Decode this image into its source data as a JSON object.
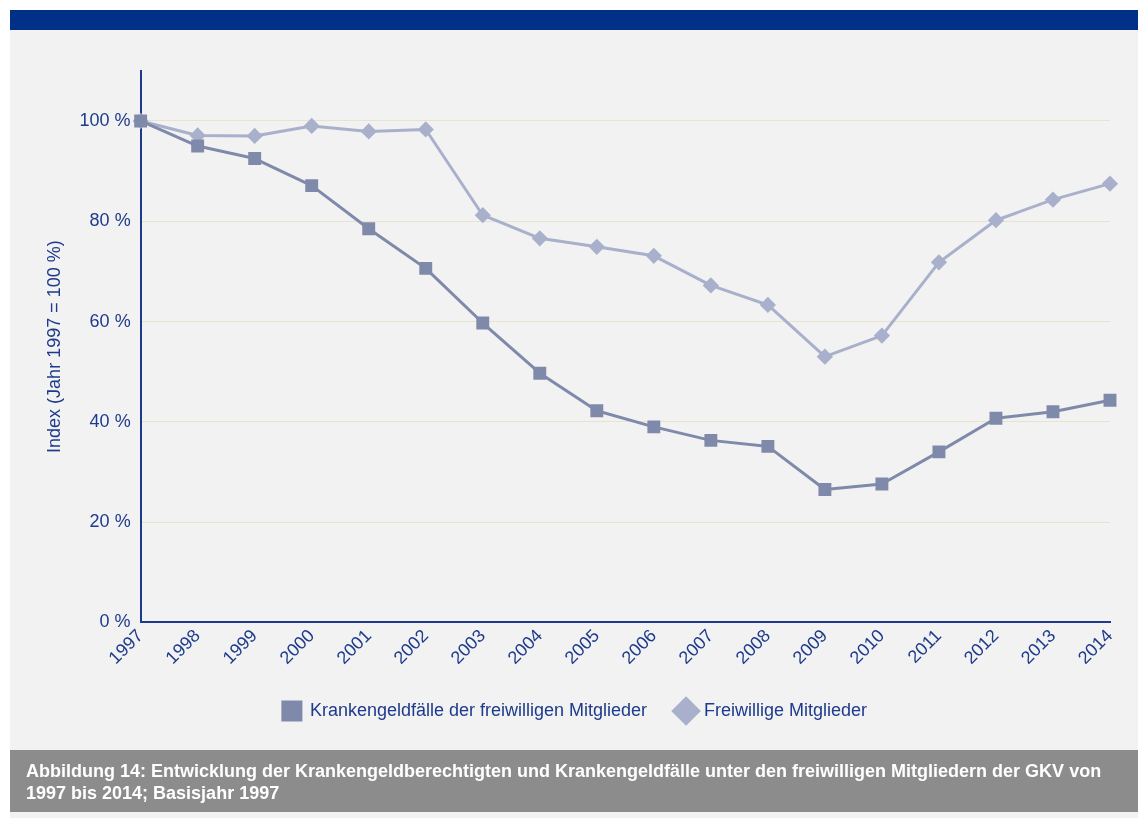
{
  "chart_data": {
    "type": "line",
    "ylabel": "Index (Jahr 1997 = 100 %)",
    "categories": [
      "1997",
      "1998",
      "1999",
      "2000",
      "2001",
      "2002",
      "2003",
      "2004",
      "2005",
      "2006",
      "2007",
      "2008",
      "2009",
      "2010",
      "2011",
      "2012",
      "2013",
      "2014"
    ],
    "series": [
      {
        "name": "Freiwillige Mitglieder",
        "color": "#a9b0cb",
        "marker": "diamond",
        "values": [
          100,
          97.1,
          97,
          99,
          97.9,
          98.3,
          81.2,
          76.6,
          74.9,
          73.1,
          67.2,
          63.3,
          53,
          57.2,
          71.8,
          80.2,
          84.3,
          87.5
        ]
      },
      {
        "name": "Krankengeldfälle der freiwilligen Mitglieder",
        "color": "#7f8aab",
        "marker": "square",
        "values": [
          100,
          95,
          92.5,
          87.1,
          78.5,
          70.6,
          59.7,
          49.7,
          42.2,
          39,
          36.3,
          35.1,
          26.5,
          27.6,
          34,
          40.7,
          42,
          44.3
        ]
      }
    ],
    "ylim": [
      0,
      110
    ],
    "yticks": [
      {
        "value": 0,
        "label": "0 %"
      },
      {
        "value": 20,
        "label": "20 %"
      },
      {
        "value": 40,
        "label": "40 %"
      },
      {
        "value": 60,
        "label": "60 %"
      },
      {
        "value": 80,
        "label": "80 %"
      },
      {
        "value": 100,
        "label": "100 %"
      }
    ],
    "grid": "y",
    "legend": "bottom",
    "line_style": "solid",
    "annotations": [
      "Abbildung 14:  Entwicklung der Krankengeldberechtigten und Krankengeldfälle unter den freiwilligen Mitgliedern der GKV von 1997 bis 2014; Basisjahr 1997"
    ]
  }
}
